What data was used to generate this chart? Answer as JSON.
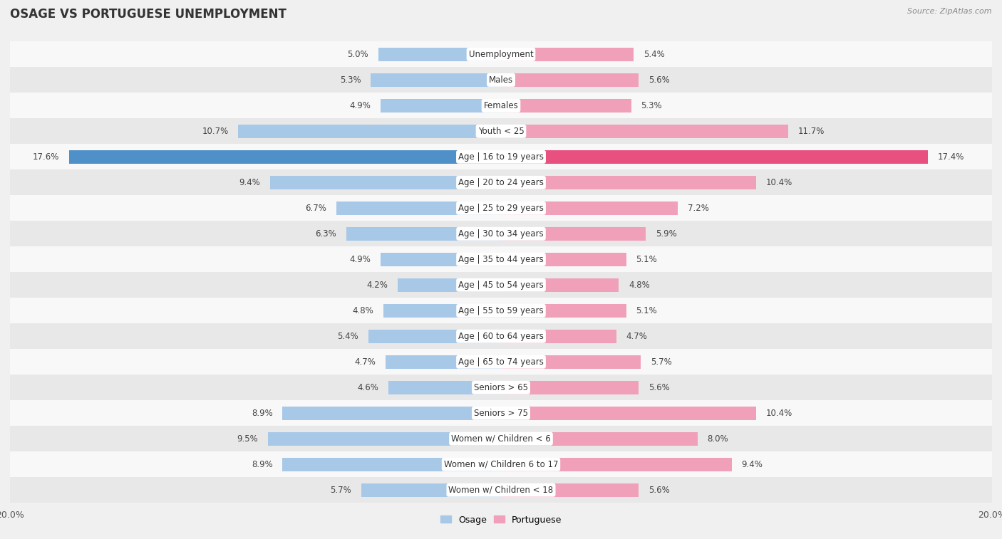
{
  "title": "OSAGE VS PORTUGUESE UNEMPLOYMENT",
  "source": "Source: ZipAtlas.com",
  "categories": [
    "Unemployment",
    "Males",
    "Females",
    "Youth < 25",
    "Age | 16 to 19 years",
    "Age | 20 to 24 years",
    "Age | 25 to 29 years",
    "Age | 30 to 34 years",
    "Age | 35 to 44 years",
    "Age | 45 to 54 years",
    "Age | 55 to 59 years",
    "Age | 60 to 64 years",
    "Age | 65 to 74 years",
    "Seniors > 65",
    "Seniors > 75",
    "Women w/ Children < 6",
    "Women w/ Children 6 to 17",
    "Women w/ Children < 18"
  ],
  "osage": [
    5.0,
    5.3,
    4.9,
    10.7,
    17.6,
    9.4,
    6.7,
    6.3,
    4.9,
    4.2,
    4.8,
    5.4,
    4.7,
    4.6,
    8.9,
    9.5,
    8.9,
    5.7
  ],
  "portuguese": [
    5.4,
    5.6,
    5.3,
    11.7,
    17.4,
    10.4,
    7.2,
    5.9,
    5.1,
    4.8,
    5.1,
    4.7,
    5.7,
    5.6,
    10.4,
    8.0,
    9.4,
    5.6
  ],
  "osage_color": "#a8c8e8",
  "portuguese_color": "#f0a0b8",
  "osage_highlight_color": "#5090c8",
  "portuguese_highlight_color": "#e85080",
  "highlight_row": 4,
  "axis_max": 20.0,
  "bg_color": "#f0f0f0",
  "row_bg_light": "#f8f8f8",
  "row_bg_dark": "#e8e8e8",
  "label_fontsize": 8.5,
  "value_fontsize": 8.5,
  "title_fontsize": 12,
  "legend_labels": [
    "Osage",
    "Portuguese"
  ]
}
